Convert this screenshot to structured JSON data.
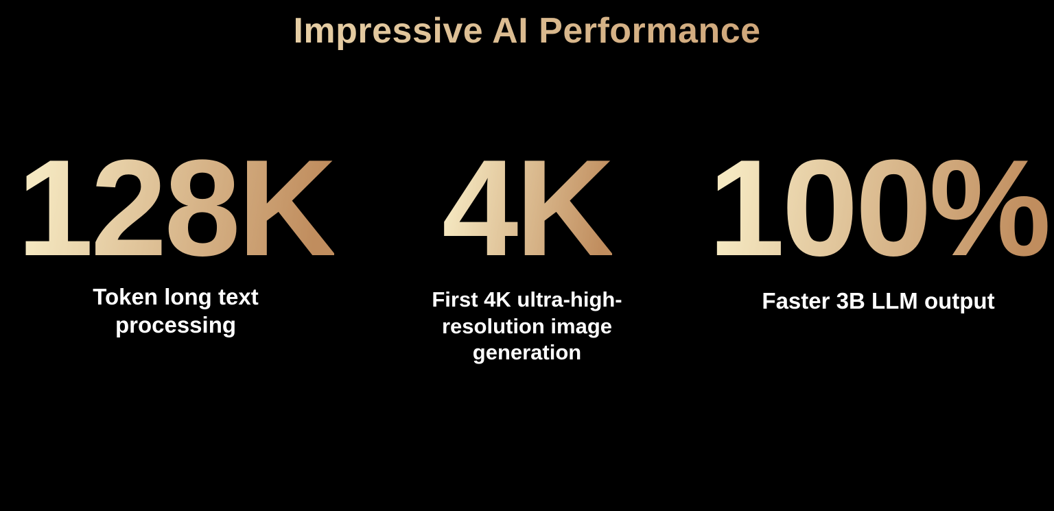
{
  "title": "Impressive AI Performance",
  "colors": {
    "background": "#000000",
    "gradient_start": "#f5e8c1",
    "gradient_end": "#c08d5e",
    "caption": "#ffffff"
  },
  "stats": [
    {
      "value": "128K",
      "caption": "Token long text processing"
    },
    {
      "value": "4K",
      "caption": "First 4K ultra-high-resolution image generation"
    },
    {
      "value": "100%",
      "caption": "Faster 3B LLM output"
    }
  ]
}
